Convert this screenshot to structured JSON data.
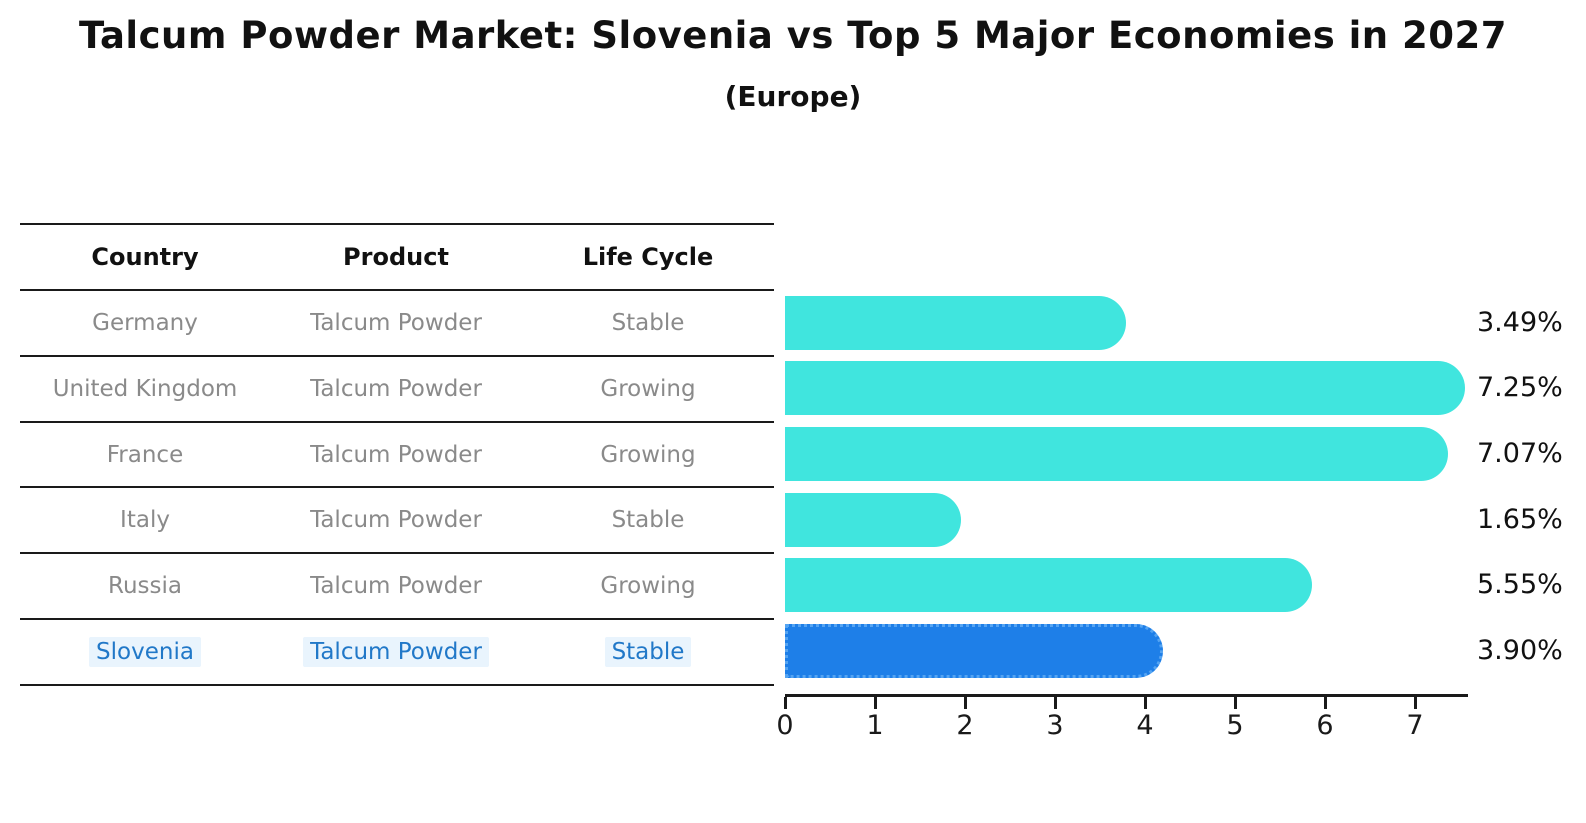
{
  "header": {
    "title": "Talcum Powder Market: Slovenia vs Top 5 Major Economies in 2027",
    "subtitle": "(Europe)"
  },
  "table": {
    "headers": [
      "Country",
      "Product",
      "Life Cycle"
    ],
    "rows": [
      {
        "country": "Germany",
        "product": "Talcum Powder",
        "life_cycle": "Stable",
        "highlighted": false
      },
      {
        "country": "United Kingdom",
        "product": "Talcum Powder",
        "life_cycle": "Growing",
        "highlighted": false
      },
      {
        "country": "France",
        "product": "Talcum Powder",
        "life_cycle": "Growing",
        "highlighted": false
      },
      {
        "country": "Italy",
        "product": "Talcum Powder",
        "life_cycle": "Stable",
        "highlighted": false
      },
      {
        "country": "Russia",
        "product": "Talcum Powder",
        "life_cycle": "Growing",
        "highlighted": false
      },
      {
        "country": "Slovenia",
        "product": "Talcum Powder",
        "life_cycle": "Stable",
        "highlighted": true
      }
    ]
  },
  "chart_data": {
    "type": "bar",
    "orientation": "horizontal",
    "title": "Talcum Powder Market: Slovenia vs Top 5 Major Economies in 2027",
    "subtitle": "(Europe)",
    "categories": [
      "Germany",
      "United Kingdom",
      "France",
      "Italy",
      "Russia",
      "Slovenia"
    ],
    "values": [
      3.49,
      7.25,
      7.07,
      1.65,
      5.55,
      3.9
    ],
    "value_labels": [
      "3.49%",
      "7.25%",
      "7.07%",
      "1.65%",
      "5.55%",
      "3.90%"
    ],
    "xlabel": "",
    "ylabel": "",
    "xlim": [
      0,
      7.6
    ],
    "x_ticks": [
      "0",
      "1",
      "2",
      "3",
      "4",
      "5",
      "6",
      "7"
    ],
    "grid": false,
    "legend": null,
    "bar_color": "#40e5de",
    "highlight_color": "#1e7fe8",
    "highlight_index": 5,
    "label_color": "#111111",
    "muted_text_color": "#8a8a8a",
    "highlight_text_color": "#2178c8"
  }
}
